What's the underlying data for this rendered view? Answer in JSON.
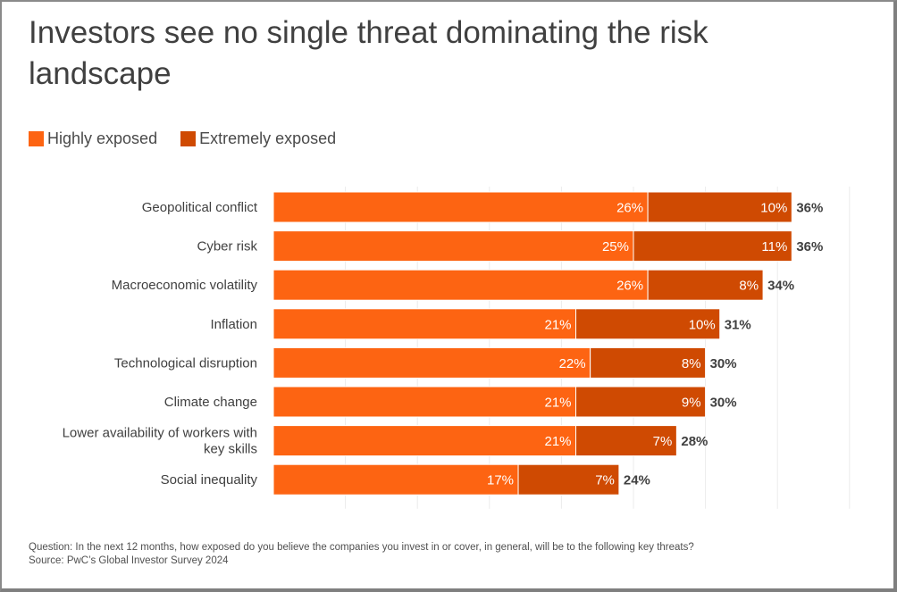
{
  "chart_data": {
    "type": "bar",
    "orientation": "horizontal",
    "stacked": true,
    "title": "Investors see no single threat dominating the risk landscape",
    "xlabel": "",
    "ylabel": "",
    "xlim": [
      0,
      40
    ],
    "grid": true,
    "legend_position": "top-left",
    "categories": [
      "Geopolitical conflict",
      "Cyber risk",
      "Macroeconomic volatility",
      "Inflation",
      "Technological disruption",
      "Climate change",
      "Lower availability of workers with key skills",
      "Social inequality"
    ],
    "category_lines": [
      [
        "Geopolitical conflict"
      ],
      [
        "Cyber risk"
      ],
      [
        "Macroeconomic volatility"
      ],
      [
        "Inflation"
      ],
      [
        "Technological disruption"
      ],
      [
        "Climate change"
      ],
      [
        "Lower availability of workers with",
        "key skills"
      ],
      [
        "Social inequality"
      ]
    ],
    "series": [
      {
        "name": "Highly exposed",
        "color": "#FD6412",
        "values": [
          26,
          25,
          26,
          21,
          22,
          21,
          21,
          17
        ]
      },
      {
        "name": "Extremely exposed",
        "color": "#CF4A02",
        "values": [
          10,
          11,
          8,
          10,
          8,
          9,
          7,
          7
        ]
      }
    ],
    "totals": [
      36,
      36,
      34,
      31,
      30,
      30,
      28,
      24
    ],
    "value_suffix": "%"
  },
  "legend": {
    "items": [
      {
        "label": "Highly exposed",
        "color": "#FD6412"
      },
      {
        "label": "Extremely exposed",
        "color": "#CF4A02"
      }
    ]
  },
  "footer": {
    "question": "Question: In the next 12 months, how exposed do you believe the companies you invest in or cover, in general, will be to the following key threats?",
    "source": "Source: PwC’s Global Investor Survey 2024"
  }
}
